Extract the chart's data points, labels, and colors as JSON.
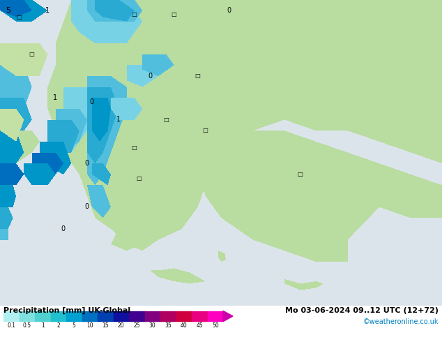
{
  "title_left": "Precipitation [mm] UK-Global",
  "title_right": "Mo 03-06-2024 09..12 UTC (12+72)",
  "credit": "©weatheronline.co.uk",
  "colorbar_colors": [
    "#b0f0f0",
    "#80e0e0",
    "#50d0d0",
    "#20c0d0",
    "#00a0d0",
    "#0070c0",
    "#0040b0",
    "#1010a0",
    "#400090",
    "#800080",
    "#b00060",
    "#d00040",
    "#e80080",
    "#ff00c0"
  ],
  "tick_labels": [
    "0.1",
    "0.5",
    "1",
    "2",
    "5",
    "10",
    "15",
    "20",
    "25",
    "30",
    "35",
    "40",
    "45",
    "50"
  ],
  "sea_color": [
    220,
    228,
    235
  ],
  "land_green": [
    185,
    220,
    160
  ],
  "land_light": [
    200,
    230,
    175
  ],
  "credit_color": "#0080c0",
  "colorbar_arrow_color": "#cc00aa",
  "figsize": [
    6.34,
    4.9
  ],
  "dpi": 100
}
